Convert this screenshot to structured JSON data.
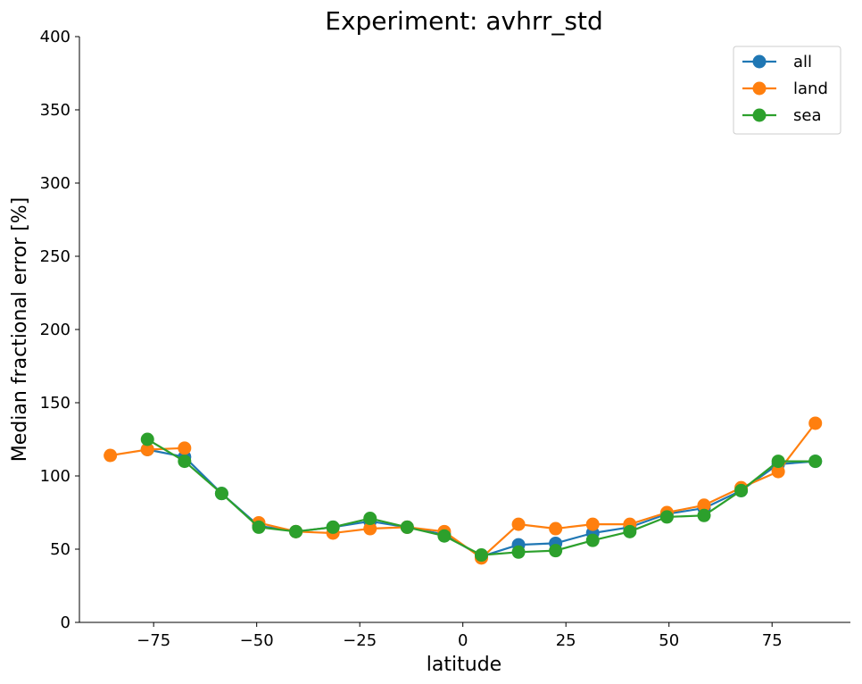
{
  "chart_data": {
    "type": "line",
    "title": "Experiment: avhrr_std",
    "xlabel": "latitude",
    "ylabel": "Median fractional error [%]",
    "xlim": [
      -93,
      94
    ],
    "ylim": [
      0,
      400
    ],
    "xticks": [
      -75,
      -50,
      -25,
      0,
      25,
      50,
      75
    ],
    "yticks": [
      0,
      50,
      100,
      150,
      200,
      250,
      300,
      350,
      400
    ],
    "grid": false,
    "legend_position": "top-right",
    "x": [
      -85.5,
      -76.5,
      -67.5,
      -58.5,
      -49.5,
      -40.5,
      -31.5,
      -22.5,
      -13.5,
      -4.5,
      4.5,
      13.5,
      22.5,
      31.5,
      40.5,
      49.5,
      58.5,
      67.5,
      76.5,
      85.5
    ],
    "series": [
      {
        "name": "all",
        "color": "#1f77b4",
        "values": [
          null,
          118,
          113,
          88,
          66,
          62,
          65,
          69,
          65,
          60,
          45,
          53,
          54,
          61,
          65,
          74,
          78,
          90,
          108,
          110
        ]
      },
      {
        "name": "land",
        "color": "#ff7f0e",
        "values": [
          114,
          118,
          119,
          null,
          68,
          62,
          61,
          64,
          65,
          62,
          44,
          67,
          64,
          67,
          67,
          75,
          80,
          92,
          103,
          136
        ]
      },
      {
        "name": "sea",
        "color": "#2ca02c",
        "values": [
          null,
          125,
          110,
          88,
          65,
          62,
          65,
          71,
          65,
          59,
          46,
          48,
          49,
          56,
          62,
          72,
          73,
          90,
          110,
          110
        ]
      }
    ]
  }
}
